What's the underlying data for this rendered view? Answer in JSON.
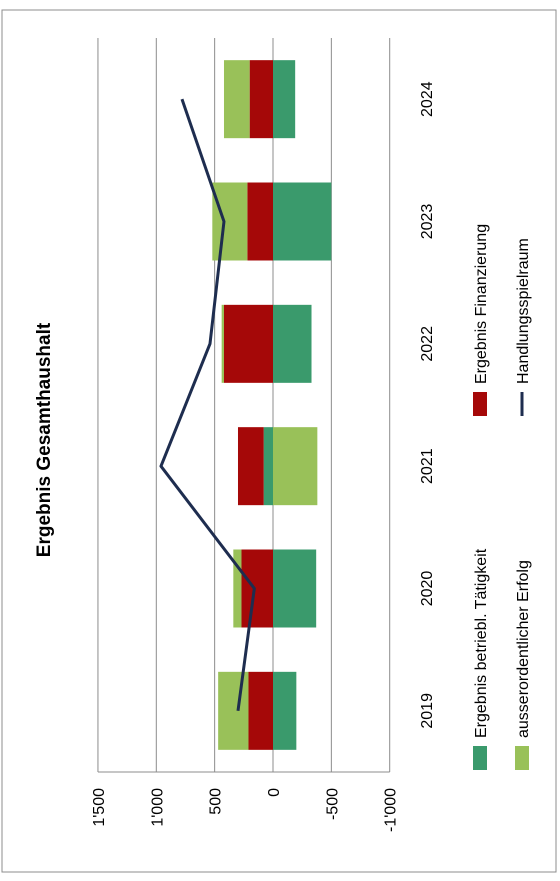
{
  "chart_data": {
    "type": "bar",
    "orientation": "rotated-90-ccw",
    "title": "Ergebnis Gesamthaushalt",
    "categories": [
      "2019",
      "2020",
      "2021",
      "2022",
      "2023",
      "2024"
    ],
    "ylim": [
      -1000,
      1500
    ],
    "yticks": [
      1500,
      1000,
      500,
      0,
      -500,
      -1000
    ],
    "ytick_labels": [
      "1'500",
      "1'000",
      "500",
      "0",
      "-500",
      "-1'000"
    ],
    "grid": true,
    "legend_position": "bottom",
    "series": [
      {
        "name": "Ergebnis betriebl. Tätigkeit",
        "type": "bar",
        "color": "#3a9a6c",
        "values": [
          -200,
          -370,
          80,
          -330,
          -500,
          -190
        ]
      },
      {
        "name": "Ergebnis Finanzierung",
        "type": "bar",
        "color": "#a50808",
        "values": [
          210,
          270,
          220,
          420,
          220,
          200
        ]
      },
      {
        "name": "ausserordentlicher Erfolg",
        "type": "bar",
        "color": "#99c159",
        "values": [
          260,
          70,
          -380,
          20,
          300,
          220
        ]
      },
      {
        "name": "Handlungsspielraum",
        "type": "line",
        "color": "#1e2d4f",
        "values": [
          300,
          160,
          960,
          540,
          420,
          780
        ]
      }
    ]
  }
}
